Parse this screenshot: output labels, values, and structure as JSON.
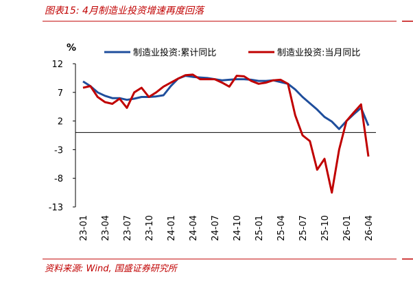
{
  "chart_data": {
    "type": "line",
    "title": "图表15: 4月制造业投资增速再度回落",
    "source": "资料来源: Wind, 国盛证券研究所",
    "y_unit": "%",
    "categories": [
      "23-01",
      null,
      null,
      "23-04",
      null,
      null,
      "23-07",
      null,
      null,
      "23-10",
      null,
      null,
      "24-01",
      null,
      null,
      "24-04",
      null,
      null,
      "24-07",
      null,
      null,
      "24-10",
      null,
      null,
      "25-01",
      null,
      null,
      "25-04",
      null,
      null,
      "25-07",
      null,
      null,
      "25-10",
      null,
      null,
      "26-01",
      null,
      null,
      "26-04"
    ],
    "series": [
      {
        "name": "制造业投资:累计同比",
        "color": "#1f4e9c",
        "values": [
          8.9,
          8.1,
          7.0,
          6.4,
          6.0,
          6.0,
          5.7,
          5.9,
          6.2,
          6.2,
          6.3,
          6.5,
          8.1,
          9.4,
          9.9,
          9.7,
          9.6,
          9.5,
          9.3,
          9.1,
          9.2,
          9.3,
          9.3,
          9.2,
          9.0,
          9.0,
          9.1,
          8.8,
          8.5,
          7.5,
          6.2,
          5.1,
          4.0,
          2.7,
          1.9,
          0.6,
          2.0,
          3.2,
          4.3,
          1.2
        ]
      },
      {
        "name": "制造业投资:当月同比",
        "color": "#c00000",
        "values": [
          7.8,
          8.1,
          6.2,
          5.3,
          5.0,
          5.9,
          4.3,
          7.0,
          7.8,
          6.2,
          7.0,
          8.0,
          8.7,
          9.4,
          10.0,
          10.1,
          9.3,
          9.3,
          9.3,
          8.7,
          8.0,
          9.9,
          9.8,
          9.0,
          8.5,
          8.7,
          9.1,
          9.2,
          8.5,
          3.0,
          -0.5,
          -1.5,
          -6.5,
          -4.6,
          -10.5,
          -3.0,
          2.0,
          3.5,
          4.9,
          -4.2
        ]
      }
    ],
    "ylim": [
      -13,
      12
    ],
    "yticks": [
      -13,
      -8,
      -3,
      2,
      7,
      12
    ],
    "legend": "top"
  }
}
